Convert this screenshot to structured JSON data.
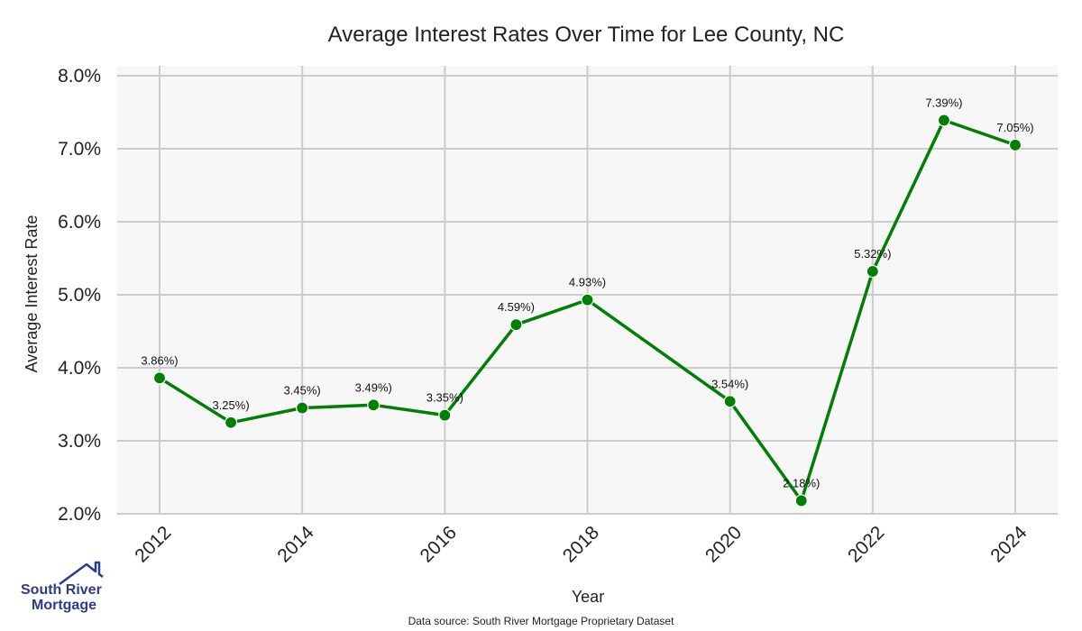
{
  "chart_data": {
    "type": "line",
    "title": "Average Interest Rates Over Time for Lee County, NC",
    "xlabel": "Year",
    "ylabel": "Average Interest Rate",
    "x": [
      2012,
      2013,
      2014,
      2015,
      2016,
      2017,
      2018,
      2020,
      2021,
      2022,
      2023,
      2024
    ],
    "values": [
      3.86,
      3.25,
      3.45,
      3.49,
      3.35,
      4.59,
      4.93,
      3.54,
      2.18,
      5.32,
      7.39,
      7.05
    ],
    "data_labels": [
      "3.86%)",
      "3.25%)",
      "3.45%)",
      "3.49%)",
      "3.35%)",
      "4.59%)",
      "4.93%)",
      "3.54%)",
      "2.18%)",
      "5.32%)",
      "7.39%)",
      "7.05%)"
    ],
    "xticks": [
      "2012",
      "2014",
      "2016",
      "2018",
      "2020",
      "2022",
      "2024"
    ],
    "yticks": [
      "2.0%",
      "3.0%",
      "4.0%",
      "5.0%",
      "6.0%",
      "7.0%",
      "8.0%"
    ],
    "ylim": [
      2.0,
      8.0
    ],
    "xlim": [
      2012,
      2024
    ],
    "grid": true,
    "series_color": "#008000",
    "background_color": "#f7f7f7",
    "grid_color": "#cccccc"
  },
  "logo": {
    "line1": "South River",
    "line2": "Mortgage",
    "color": "#2e3a8c"
  },
  "footer": {
    "source": "Data source: South River Mortgage Proprietary Dataset"
  }
}
